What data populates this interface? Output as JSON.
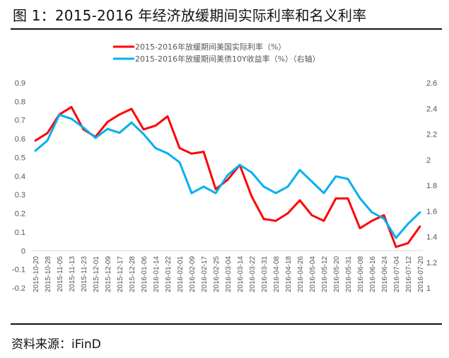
{
  "title": "图 1：2015-2016 年经济放缓期间实际利率和名义利率",
  "source": "资料来源：iFinD",
  "chart_data": {
    "type": "line",
    "title": "图 1：2015-2016 年经济放缓期间实际利率和名义利率",
    "x": [
      "2015-10-20",
      "2015-10-28",
      "2015-11-05",
      "2015-11-13",
      "2015-11-23",
      "2015-12-01",
      "2015-12-09",
      "2015-12-17",
      "2015-12-28",
      "2016-01-06",
      "2016-01-14",
      "2016-01-22",
      "2016-02-01",
      "2016-02-09",
      "2016-02-17",
      "2016-02-25",
      "2016-03-04",
      "2016-03-14",
      "2016-03-22",
      "2016-03-31",
      "2016-04-08",
      "2016-04-18",
      "2016-04-26",
      "2016-05-04",
      "2016-05-12",
      "2016-05-20",
      "2016-05-31",
      "2016-06-08",
      "2016-06-16",
      "2016-06-24",
      "2016-07-04",
      "2016-07-12",
      "2016-07-20"
    ],
    "series": [
      {
        "name": "2015-2016年放缓期间美国实际利率（%）",
        "axis": "left",
        "color": "#ff0000",
        "values": [
          0.59,
          0.63,
          0.73,
          0.77,
          0.65,
          0.61,
          0.69,
          0.73,
          0.76,
          0.65,
          0.67,
          0.72,
          0.55,
          0.52,
          0.53,
          0.33,
          0.38,
          0.46,
          0.29,
          0.17,
          0.16,
          0.2,
          0.27,
          0.19,
          0.16,
          0.28,
          0.28,
          0.12,
          0.16,
          0.19,
          0.02,
          0.04,
          0.13
        ]
      },
      {
        "name": "2015-2016年放缓期间美债10Y收益率（%）（右轴）",
        "axis": "right",
        "color": "#00b0f0",
        "values": [
          2.07,
          2.15,
          2.35,
          2.32,
          2.25,
          2.17,
          2.24,
          2.21,
          2.29,
          2.2,
          2.09,
          2.05,
          1.98,
          1.74,
          1.79,
          1.74,
          1.88,
          1.96,
          1.9,
          1.79,
          1.74,
          1.79,
          1.92,
          1.83,
          1.74,
          1.87,
          1.85,
          1.7,
          1.59,
          1.54,
          1.39,
          1.5,
          1.59
        ]
      }
    ],
    "y_left": {
      "min": -0.2,
      "max": 0.9,
      "ticks": [
        "-0.2",
        "-0.1",
        "0",
        "0.1",
        "0.2",
        "0.3",
        "0.4",
        "0.5",
        "0.6",
        "0.7",
        "0.8",
        "0.9"
      ]
    },
    "y_right": {
      "min": 1.0,
      "max": 2.6,
      "ticks": [
        "1",
        "1.2",
        "1.4",
        "1.6",
        "1.8",
        "2",
        "2.2",
        "2.4",
        "2.6"
      ]
    },
    "grid": false,
    "legend": "top-center"
  }
}
